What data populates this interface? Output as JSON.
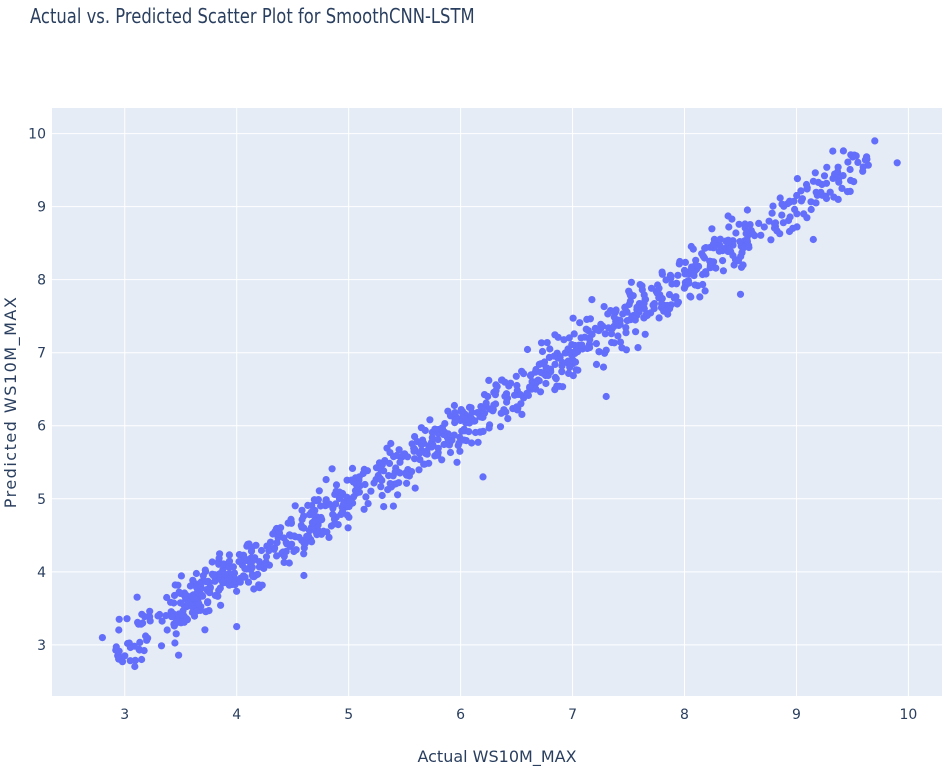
{
  "chart_data": {
    "type": "scatter",
    "title": "Actual vs. Predicted Scatter Plot for SmoothCNN-LSTM",
    "xlabel": "Actual WS10M_MAX",
    "ylabel": "Predicted WS10M_MAX",
    "xlim": [
      2.35,
      10.3
    ],
    "ylim": [
      2.3,
      10.35
    ],
    "xticks": [
      3,
      4,
      5,
      6,
      7,
      8,
      9,
      10
    ],
    "yticks": [
      3,
      4,
      5,
      6,
      7,
      8,
      9,
      10
    ],
    "grid": true,
    "marker_color": "#636efa",
    "plot_bgcolor": "#e5ecf6",
    "gridcolor": "#ffffff",
    "highlighted_points": [
      {
        "x": 2.8,
        "y": 3.1
      },
      {
        "x": 2.95,
        "y": 3.35
      },
      {
        "x": 3.0,
        "y": 2.85
      },
      {
        "x": 3.15,
        "y": 2.8
      },
      {
        "x": 4.0,
        "y": 3.25
      },
      {
        "x": 4.6,
        "y": 3.95
      },
      {
        "x": 5.4,
        "y": 4.9
      },
      {
        "x": 6.2,
        "y": 5.3
      },
      {
        "x": 7.3,
        "y": 6.4
      },
      {
        "x": 8.5,
        "y": 7.8
      },
      {
        "x": 9.15,
        "y": 8.55
      },
      {
        "x": 9.7,
        "y": 9.9
      },
      {
        "x": 9.9,
        "y": 9.6
      }
    ],
    "bulk": {
      "count": 1000,
      "x_range": [
        2.9,
        9.7
      ],
      "noise_sd": 0.19,
      "seed": 42
    }
  }
}
